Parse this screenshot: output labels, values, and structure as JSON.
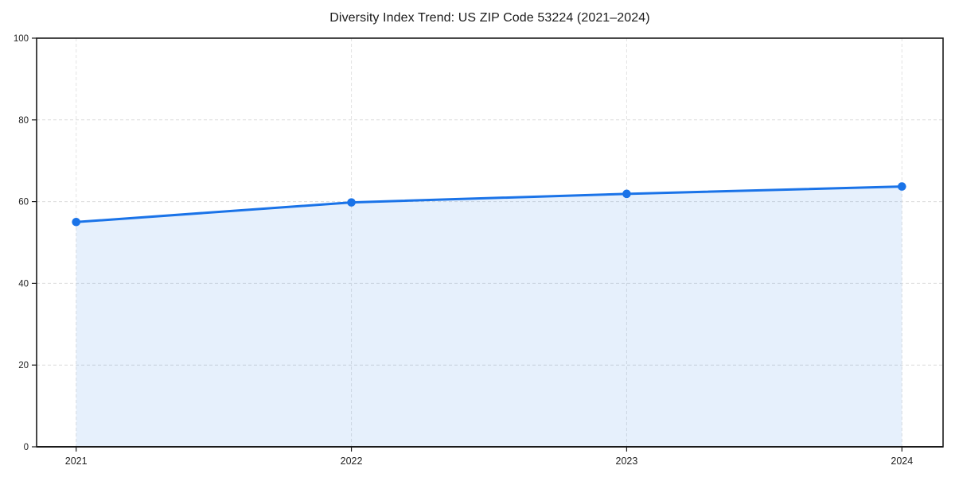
{
  "chart_data": {
    "type": "area",
    "title": "Diversity Index Trend: US ZIP Code 53224 (2021–2024)",
    "x": [
      2021,
      2022,
      2023,
      2024
    ],
    "x_tick_labels": [
      "2021",
      "2022",
      "2023",
      "2024"
    ],
    "series": [
      {
        "name": "Diversity Index",
        "values": [
          55.0,
          59.8,
          61.9,
          63.7
        ]
      }
    ],
    "xlabel": "",
    "ylabel": "",
    "ylim": [
      0,
      100
    ],
    "yticks": [
      0,
      20,
      40,
      60,
      80,
      100
    ],
    "grid": true,
    "grid_style": "dashed",
    "legend_position": "none",
    "colors": {
      "line": "#1a73e8",
      "marker": "#1a73e8",
      "fill": "#1a73e8",
      "fill_opacity": 0.11,
      "grid": "#dcdcdc",
      "spine": "#1a1a1a",
      "tick_label": "#222222",
      "background": "#ffffff"
    }
  }
}
